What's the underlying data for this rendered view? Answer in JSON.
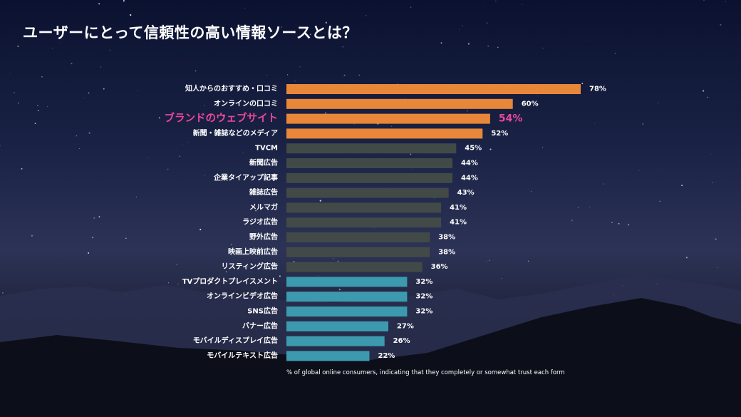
{
  "title": "ユーザーにとって信頼性の高い情報ソースとは？",
  "footnote": "% of global online consumers, indicating that they completely or somewhat trust each form",
  "colors": {
    "top4": "#e8873a",
    "middle": "#424a48",
    "bottom": "#3d9aae",
    "highlight": "#e8489a"
  },
  "chart_data": {
    "type": "bar",
    "orientation": "horizontal",
    "categories": [
      "知人からのおすすめ・口コミ",
      "オンラインの口コミ",
      "ブランドのウェブサイト",
      "新聞・雑誌などのメディア",
      "TVCM",
      "新聞広告",
      "企業タイアップ記事",
      "雑誌広告",
      "メルマガ",
      "ラジオ広告",
      "野外広告",
      "映画上映前広告",
      "リスティング広告",
      "TVプロダクトプレイスメント",
      "オンラインビデオ広告",
      "SNS広告",
      "バナー広告",
      "モバイルディスプレイ広告",
      "モバイルテキスト広告"
    ],
    "values": [
      78,
      60,
      54,
      52,
      45,
      44,
      44,
      43,
      41,
      41,
      38,
      38,
      36,
      32,
      32,
      32,
      27,
      26,
      22
    ],
    "value_labels": [
      "78%",
      "60%",
      "54%",
      "52%",
      "45%",
      "44%",
      "44%",
      "43%",
      "41%",
      "41%",
      "38%",
      "38%",
      "36%",
      "32%",
      "32%",
      "32%",
      "27%",
      "26%",
      "22%"
    ],
    "groups": [
      "top4",
      "top4",
      "top4",
      "top4",
      "middle",
      "middle",
      "middle",
      "middle",
      "middle",
      "middle",
      "middle",
      "middle",
      "middle",
      "bottom",
      "bottom",
      "bottom",
      "bottom",
      "bottom",
      "bottom"
    ],
    "highlight_index": 2,
    "xlim": [
      0,
      78
    ]
  }
}
